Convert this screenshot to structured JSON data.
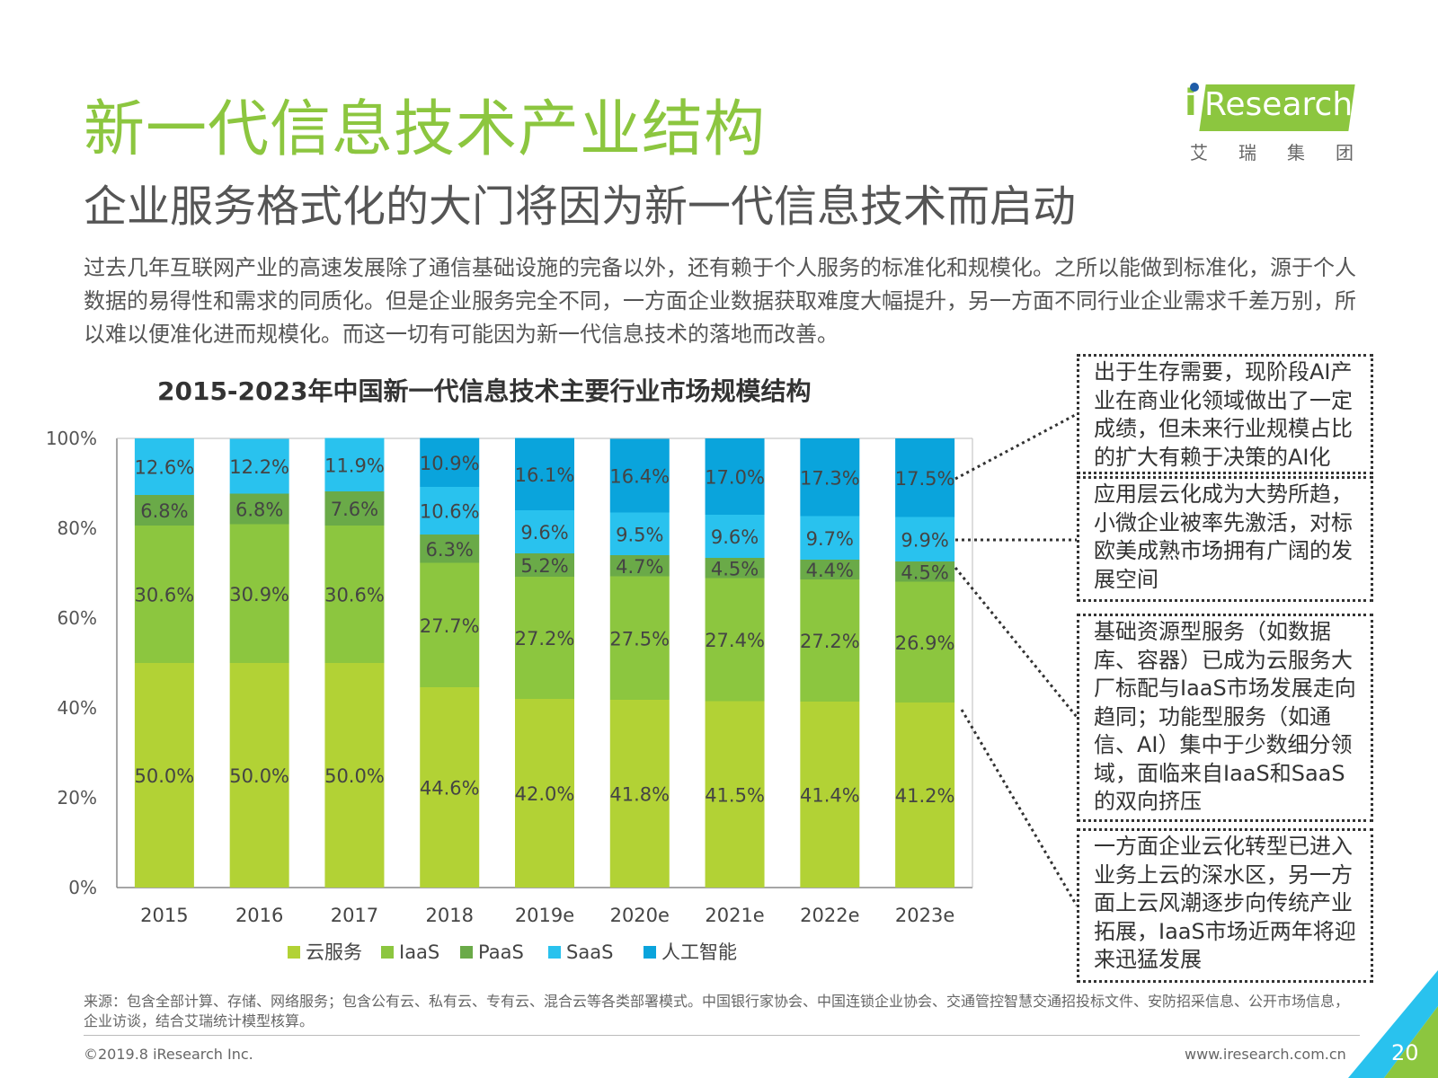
{
  "header": {
    "title": "新一代信息技术产业结构",
    "subtitle": "企业服务格式化的大门将因为新一代信息技术而启动"
  },
  "logo": {
    "brand": "iResearch",
    "brand_rest": "Research",
    "cn": "艾瑞集团"
  },
  "intro": "过去几年互联网产业的高速发展除了通信基础设施的完备以外，还有赖于个人服务的标准化和规模化。之所以能做到标准化，源于个人数据的易得性和需求的同质化。但是企业服务完全不同，一方面企业数据获取难度大幅提升，另一方面不同行业企业需求千差万别，所以难以便准化进而规模化。而这一切有可能因为新一代信息技术的落地而改善。",
  "chart_data": {
    "type": "bar",
    "stacked": true,
    "title": "2015-2023年中国新一代信息技术主要行业市场规模结构",
    "categories": [
      "2015",
      "2016",
      "2017",
      "2018",
      "2019e",
      "2020e",
      "2021e",
      "2022e",
      "2023e"
    ],
    "series": [
      {
        "name": "云服务",
        "color": "#b2d235",
        "values": [
          50.0,
          50.0,
          50.0,
          44.6,
          42.0,
          41.8,
          41.5,
          41.4,
          41.2
        ]
      },
      {
        "name": "IaaS",
        "color": "#8cc63f",
        "values": [
          30.6,
          30.9,
          30.6,
          27.7,
          27.2,
          27.5,
          27.4,
          27.2,
          26.9
        ]
      },
      {
        "name": "PaaS",
        "color": "#6aaa48",
        "values": [
          6.8,
          6.8,
          7.6,
          6.3,
          5.2,
          4.7,
          4.5,
          4.4,
          4.5
        ]
      },
      {
        "name": "SaaS",
        "color": "#29c2ee",
        "values": [
          12.6,
          12.2,
          11.9,
          10.6,
          9.6,
          9.5,
          9.6,
          9.7,
          9.9
        ]
      },
      {
        "name": "人工智能",
        "color": "#0aa4dc",
        "values": [
          0,
          0,
          0,
          10.9,
          16.1,
          16.4,
          17.0,
          17.3,
          17.5
        ]
      }
    ],
    "yticks": [
      "0%",
      "20%",
      "40%",
      "60%",
      "80%",
      "100%"
    ],
    "ylim": [
      0,
      100
    ],
    "legend": "bottom",
    "grid": false
  },
  "callouts": [
    "出于生存需要，现阶段AI产业在商业化领域做出了一定成绩，但未来行业规模占比的扩大有赖于决策的AI化",
    "应用层云化成为大势所趋，小微企业被率先激活，对标欧美成熟市场拥有广阔的发展空间",
    "基础资源型服务（如数据库、容器）已成为云服务大厂标配与IaaS市场发展走向趋同；功能型服务（如通信、AI）集中于少数细分领域，面临来自IaaS和SaaS的双向挤压",
    "一方面企业云化转型已进入业务上云的深水区，另一方面上云风潮逐步向传统产业拓展，IaaS市场近两年将迎来迅猛发展"
  ],
  "footer": {
    "source": "来源：包含全部计算、存储、网络服务；包含公有云、私有云、专有云、混合云等各类部署模式。中国银行家协会、中国连锁企业协会、交通管控智慧交通招投标文件、安防招采信息、公开市场信息，企业访谈，结合艾瑞统计模型核算。",
    "copyright": "©2019.8 iResearch Inc.",
    "website": "www.iresearch.com.cn",
    "page": "20"
  }
}
